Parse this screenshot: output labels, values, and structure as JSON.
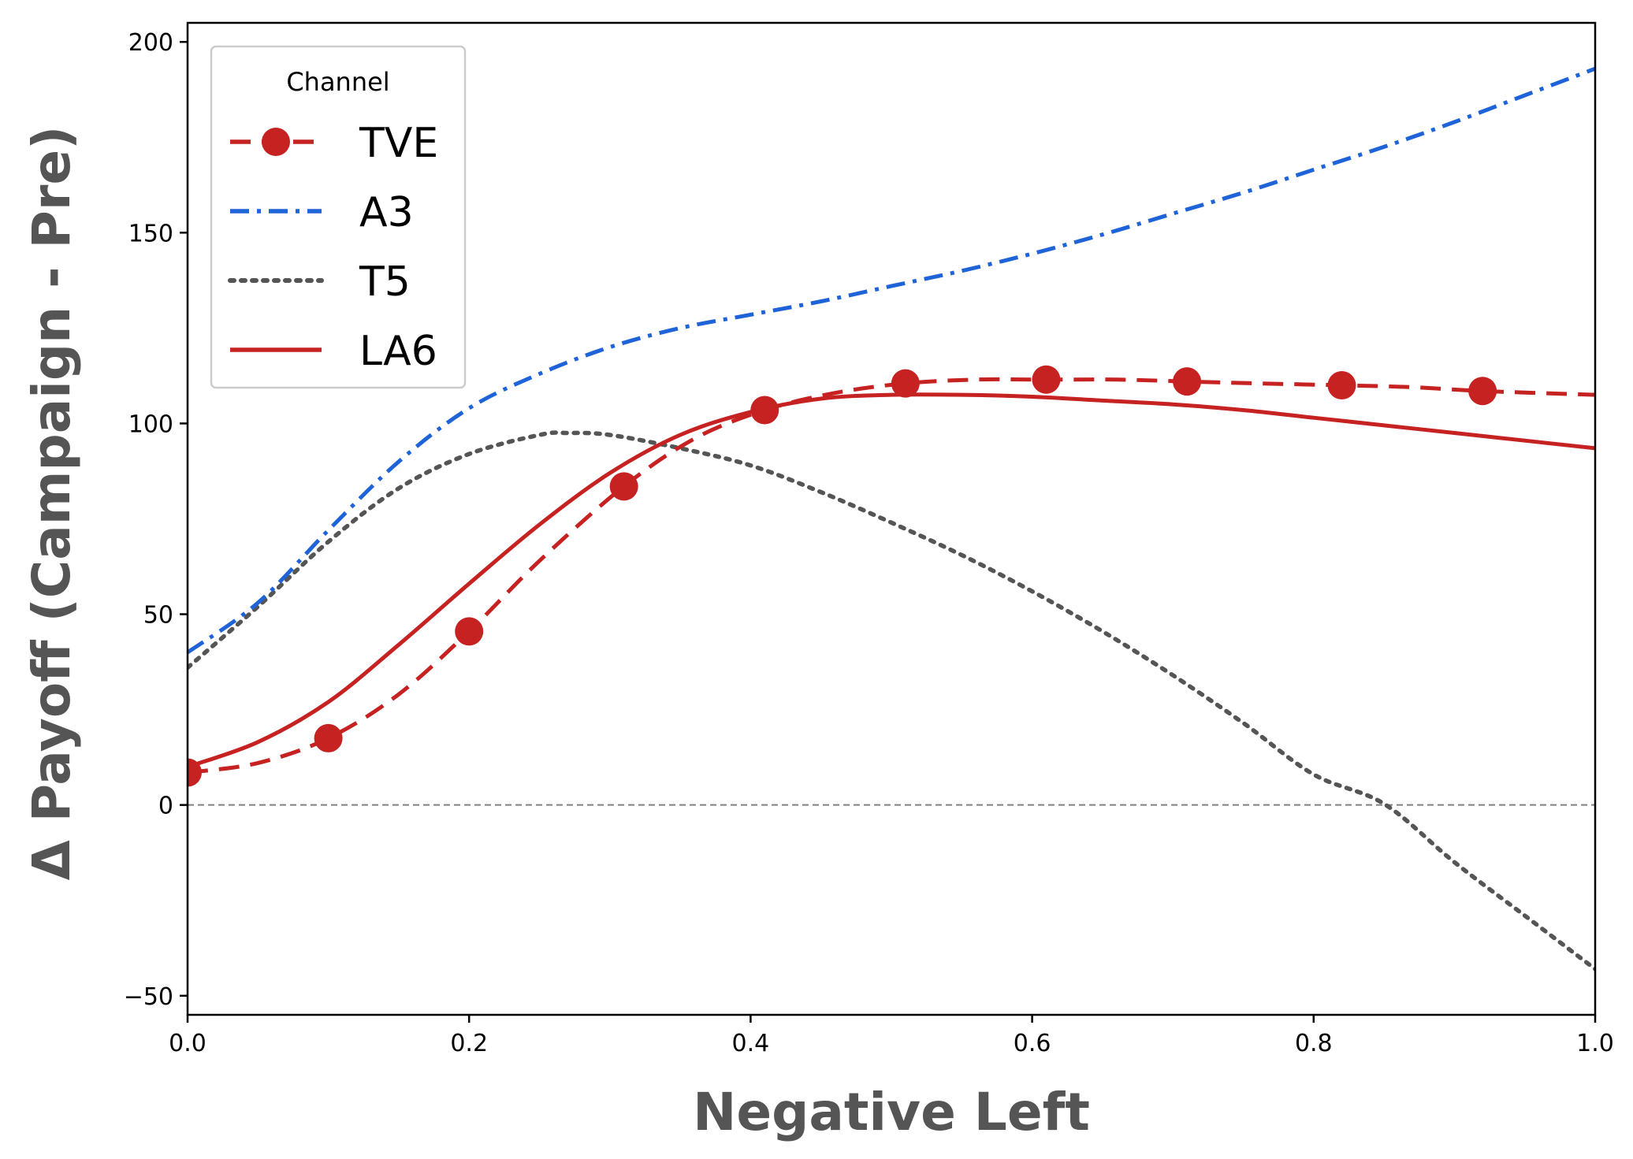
{
  "chart_data": {
    "type": "line",
    "xlabel": "Negative Left",
    "ylabel": "Δ Payoff (Campaign - Pre)",
    "xlim": [
      0.0,
      1.0
    ],
    "ylim": [
      -55,
      205
    ],
    "xticks": [
      "0.0",
      "0.2",
      "0.4",
      "0.6",
      "0.8",
      "1.0"
    ],
    "yticks": [
      "−50",
      "0",
      "50",
      "100",
      "150",
      "200"
    ],
    "xtick_values": [
      0.0,
      0.2,
      0.4,
      0.6,
      0.8,
      1.0
    ],
    "ytick_values": [
      -50,
      0,
      50,
      100,
      150,
      200
    ],
    "reference_line": {
      "y": 0,
      "style": "dashed",
      "color": "#808080"
    },
    "grid": false,
    "legend": {
      "title": "Channel",
      "placement": "top-left"
    },
    "series": [
      {
        "name": "TVE",
        "color": "#c62222",
        "style": "dashed-with-markers",
        "x": [
          0.0,
          0.05,
          0.1,
          0.15,
          0.2,
          0.25,
          0.31,
          0.36,
          0.41,
          0.46,
          0.51,
          0.56,
          0.61,
          0.66,
          0.71,
          0.76,
          0.82,
          0.87,
          0.92,
          1.0
        ],
        "y": [
          8.5,
          11,
          17.5,
          29,
          45.5,
          64,
          83.5,
          96,
          103.5,
          108,
          110.5,
          111.5,
          111.5,
          111.5,
          111,
          110.5,
          110,
          109.5,
          108.5,
          107.5
        ],
        "markers_x": [
          0.0,
          0.1,
          0.2,
          0.31,
          0.41,
          0.51,
          0.61,
          0.71,
          0.82,
          0.92
        ],
        "markers_y": [
          8.5,
          17.5,
          45.5,
          83.5,
          103.5,
          110.5,
          111.5,
          111,
          110,
          108.5
        ]
      },
      {
        "name": "A3",
        "color": "#1f63d8",
        "style": "dashdot",
        "x": [
          0.0,
          0.05,
          0.1,
          0.15,
          0.2,
          0.25,
          0.3,
          0.35,
          0.4,
          0.45,
          0.5,
          0.55,
          0.6,
          0.65,
          0.7,
          0.75,
          0.8,
          0.85,
          0.9,
          0.95,
          1.0
        ],
        "y": [
          40,
          53,
          72,
          90,
          104,
          113,
          120,
          125,
          128.5,
          132,
          136,
          140,
          144.5,
          149.5,
          155,
          160.5,
          166.5,
          172.5,
          179,
          186,
          193
        ]
      },
      {
        "name": "T5",
        "color": "#555555",
        "style": "dotted",
        "x": [
          0.0,
          0.05,
          0.1,
          0.15,
          0.2,
          0.25,
          0.27,
          0.3,
          0.35,
          0.4,
          0.45,
          0.5,
          0.55,
          0.6,
          0.65,
          0.7,
          0.75,
          0.8,
          0.85,
          0.9,
          0.95,
          1.0
        ],
        "y": [
          36,
          52,
          69,
          83,
          92,
          97,
          97.5,
          97,
          93.5,
          89,
          82,
          74,
          65.5,
          56,
          45.5,
          34,
          21.5,
          8,
          0.3,
          -15,
          -29,
          -43
        ]
      },
      {
        "name": "LA6",
        "color": "#c62222",
        "style": "solid",
        "x": [
          0.0,
          0.05,
          0.1,
          0.15,
          0.2,
          0.25,
          0.3,
          0.35,
          0.4,
          0.45,
          0.5,
          0.55,
          0.6,
          0.65,
          0.7,
          0.75,
          0.8,
          0.85,
          0.9,
          0.95,
          1.0
        ],
        "y": [
          10,
          16.5,
          27,
          42,
          58,
          73.5,
          87,
          97,
          103,
          106.5,
          107.5,
          107.5,
          107,
          106,
          105,
          103.5,
          101.5,
          99.5,
          97.5,
          95.5,
          93.5
        ]
      }
    ]
  }
}
